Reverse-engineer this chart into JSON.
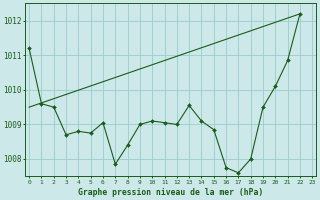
{
  "title": "Graphe pression niveau de la mer (hPa)",
  "bg_color": "#cce8e8",
  "grid_color": "#99cccc",
  "line_color": "#1a5c1a",
  "x_ticks": [
    0,
    1,
    2,
    3,
    4,
    5,
    6,
    7,
    8,
    9,
    10,
    11,
    12,
    13,
    14,
    15,
    16,
    17,
    18,
    19,
    20,
    21,
    22,
    23
  ],
  "ylim": [
    1007.5,
    1012.5
  ],
  "yticks": [
    1008,
    1009,
    1010,
    1011,
    1012
  ],
  "series1_x": [
    0,
    1,
    2,
    3,
    4,
    5,
    6,
    7,
    8,
    9,
    10,
    11,
    12,
    13,
    14,
    15,
    16,
    17,
    18,
    19,
    20,
    21,
    22
  ],
  "series1_y": [
    1011.2,
    1009.6,
    1009.5,
    1008.7,
    1008.8,
    1008.75,
    1009.05,
    1007.85,
    1008.4,
    1009.0,
    1009.1,
    1009.05,
    1009.0,
    1009.55,
    1009.1,
    1008.85,
    1007.75,
    1007.6,
    1008.0,
    1009.5,
    1010.1,
    1010.85,
    1012.2
  ],
  "series2_x": [
    0,
    22
  ],
  "series2_y": [
    1009.5,
    1012.2
  ],
  "xlim": [
    -0.3,
    23.3
  ]
}
